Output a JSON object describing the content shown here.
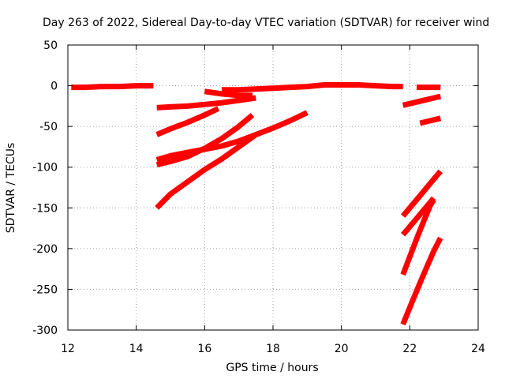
{
  "chart_data": {
    "type": "line",
    "title": "Day 263 of 2022, Sidereal Day-to-day VTEC variation (SDTVAR) for receiver wind",
    "xlabel": "GPS time / hours",
    "ylabel": "SDTVAR / TECUs",
    "xlim": [
      12,
      24
    ],
    "ylim": [
      -300,
      50
    ],
    "xticks": [
      12,
      14,
      16,
      18,
      20,
      22,
      24
    ],
    "yticks": [
      50,
      0,
      -50,
      -100,
      -150,
      -200,
      -250,
      -300
    ],
    "xtick_labels": [
      "12",
      "14",
      "16",
      "18",
      "20",
      "22",
      "24"
    ],
    "ytick_labels": [
      "50",
      "0",
      "-50",
      "-100",
      "-150",
      "-200",
      "-250",
      "-300"
    ],
    "grid": true,
    "series_color": "#ff0000",
    "series": [
      {
        "x": [
          12.1,
          12.5,
          13.0,
          13.5,
          14.0,
          14.5
        ],
        "y": [
          -2,
          -2,
          -1,
          -1,
          0,
          0
        ]
      },
      {
        "x": [
          14.6,
          15.0,
          15.5,
          16.0,
          16.5,
          17.0,
          17.5
        ],
        "y": [
          -27,
          -26,
          -25,
          -23,
          -21,
          -18,
          -15
        ]
      },
      {
        "x": [
          14.6,
          15.0,
          15.5,
          16.0,
          16.4
        ],
        "y": [
          -60,
          -53,
          -45,
          -36,
          -28
        ]
      },
      {
        "x": [
          14.6,
          15.0,
          15.5,
          16.0,
          16.5,
          17.0,
          17.4
        ],
        "y": [
          -97,
          -93,
          -87,
          -77,
          -65,
          -50,
          -36
        ]
      },
      {
        "x": [
          14.6,
          15.0,
          15.5,
          16.0,
          16.5,
          17.0,
          17.5,
          18.0,
          18.5,
          19.0
        ],
        "y": [
          -91,
          -86,
          -82,
          -78,
          -74,
          -68,
          -60,
          -52,
          -43,
          -33
        ]
      },
      {
        "x": [
          14.6,
          15.0,
          15.5,
          16.0,
          16.5,
          17.0,
          17.5
        ],
        "y": [
          -150,
          -133,
          -118,
          -103,
          -90,
          -75,
          -60
        ]
      },
      {
        "x": [
          16.0,
          16.5,
          17.0,
          17.4
        ],
        "y": [
          -7,
          -10,
          -12,
          -12
        ]
      },
      {
        "x": [
          16.5,
          17.0,
          17.5,
          18.0,
          18.5,
          19.0,
          19.5,
          20.0,
          20.5,
          21.0,
          21.5,
          21.8
        ],
        "y": [
          -5,
          -5,
          -4,
          -3,
          -2,
          -1,
          1,
          1,
          1,
          0,
          -1,
          -1
        ]
      },
      {
        "x": [
          21.8,
          22.2,
          22.6,
          22.9
        ],
        "y": [
          -24,
          -20,
          -16,
          -13
        ]
      },
      {
        "x": [
          22.2,
          22.5,
          22.9
        ],
        "y": [
          -2,
          -2,
          -2
        ]
      },
      {
        "x": [
          22.3,
          22.6,
          22.9
        ],
        "y": [
          -46,
          -43,
          -40
        ]
      },
      {
        "x": [
          21.8,
          22.2,
          22.6,
          22.9
        ],
        "y": [
          -160,
          -140,
          -120,
          -105
        ]
      },
      {
        "x": [
          21.8,
          22.1,
          22.4,
          22.7
        ],
        "y": [
          -183,
          -168,
          -153,
          -138
        ]
      },
      {
        "x": [
          21.8,
          22.0,
          22.2,
          22.4,
          22.6,
          22.7
        ],
        "y": [
          -232,
          -210,
          -188,
          -167,
          -147,
          -140
        ]
      },
      {
        "x": [
          21.8,
          22.1,
          22.4,
          22.7,
          22.9
        ],
        "y": [
          -293,
          -262,
          -232,
          -203,
          -187
        ]
      }
    ]
  }
}
